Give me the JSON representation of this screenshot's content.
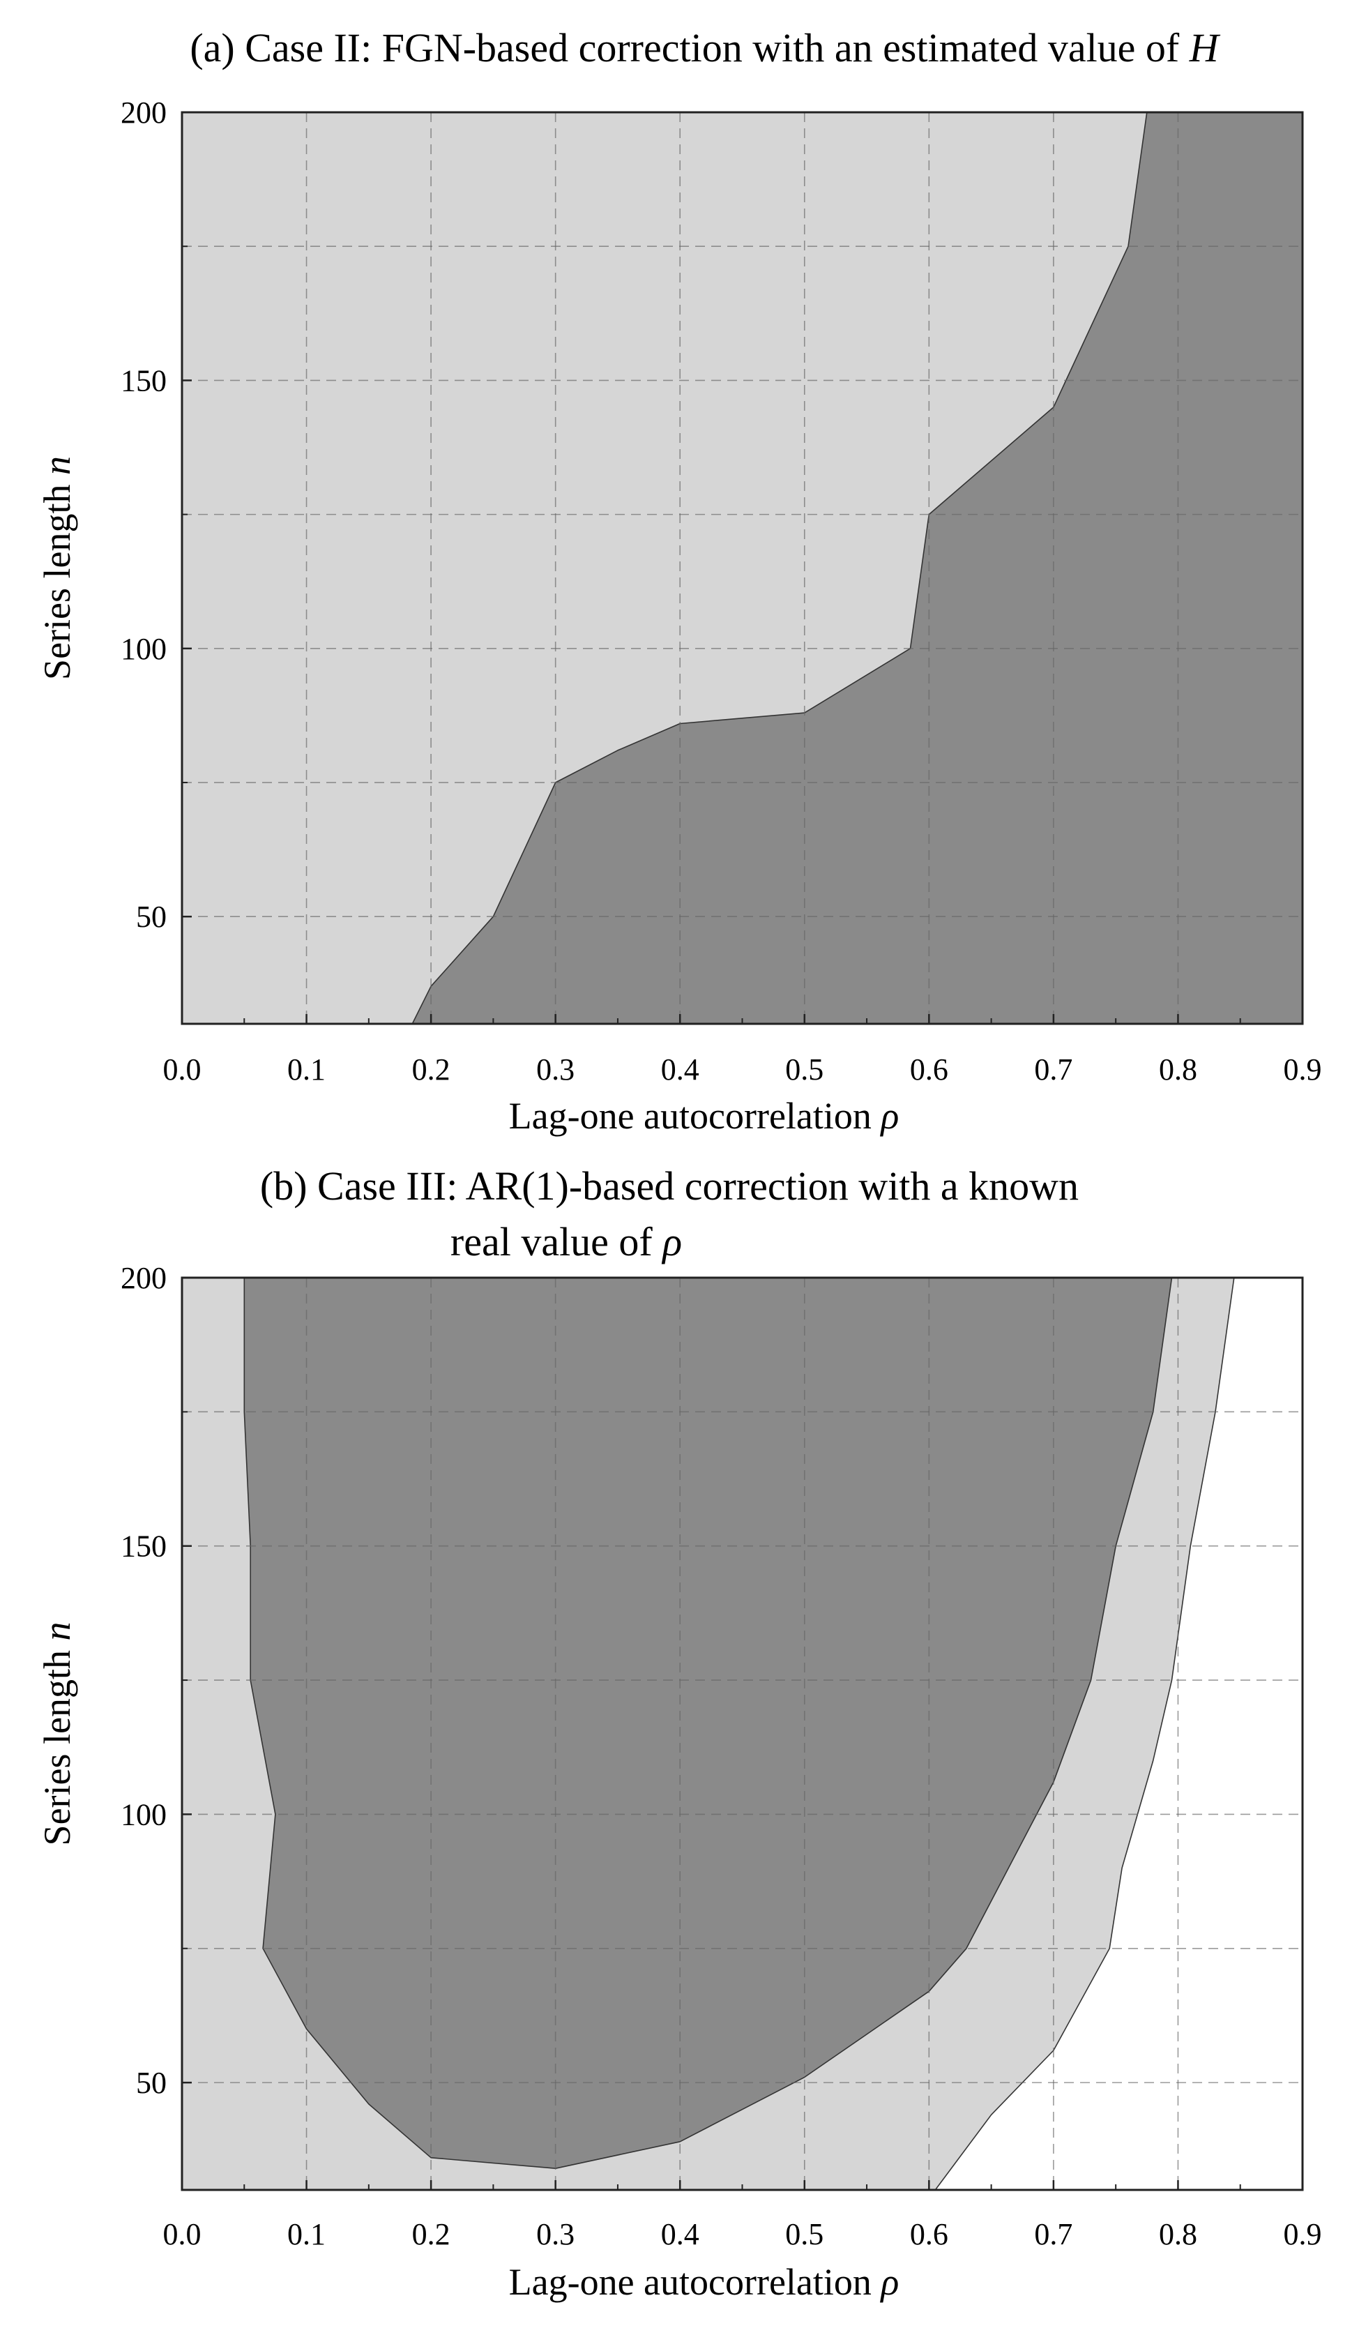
{
  "chart_data": [
    {
      "type": "area",
      "title": "(a) Case II: FGN-based correction with an estimated value of H",
      "title_parts": [
        {
          "text": "(a) Case II: FGN-based correction with an estimated value of ",
          "italic": false
        },
        {
          "text": "H",
          "italic": true
        }
      ],
      "xlabel": "Lag-one autocorrelation ρ",
      "xlabel_parts": [
        {
          "text": "Lag-one autocorrelation ",
          "italic": false
        },
        {
          "text": "ρ",
          "italic": true
        }
      ],
      "ylabel": "Series length n",
      "ylabel_parts": [
        {
          "text": "Series length ",
          "italic": false
        },
        {
          "text": "n",
          "italic": true
        }
      ],
      "xlim": [
        0,
        0.9
      ],
      "ylim": [
        30,
        200
      ],
      "xticks": [
        "0.0",
        "0.1",
        "0.2",
        "0.3",
        "0.4",
        "0.5",
        "0.6",
        "0.7",
        "0.8",
        "0.9"
      ],
      "yticks": [
        "50",
        "100",
        "150",
        "200"
      ],
      "grid": true,
      "colors": {
        "background": "#d6d6d6",
        "region": "#8a8a8a"
      },
      "regions": [
        {
          "fill": "#8a8a8a",
          "boundary": [
            [
              0.185,
              30
            ],
            [
              0.2,
              37
            ],
            [
              0.25,
              50
            ],
            [
              0.3,
              75
            ],
            [
              0.35,
              81
            ],
            [
              0.4,
              86
            ],
            [
              0.5,
              88
            ],
            [
              0.585,
              100
            ],
            [
              0.6,
              125
            ],
            [
              0.7,
              145
            ],
            [
              0.76,
              175
            ],
            [
              0.775,
              200
            ],
            [
              0.9,
              200
            ],
            [
              0.9,
              30
            ]
          ]
        }
      ]
    },
    {
      "type": "area",
      "title": "(b) Case III: AR(1)-based correction with a known real value of ρ",
      "title_lines": [
        [
          {
            "text": "(b) Case III: AR(1)-based correction with a known",
            "italic": false
          }
        ],
        [
          {
            "text": "real value of ",
            "italic": false
          },
          {
            "text": "ρ",
            "italic": true
          }
        ]
      ],
      "xlabel": "Lag-one autocorrelation ρ",
      "xlabel_parts": [
        {
          "text": "Lag-one autocorrelation ",
          "italic": false
        },
        {
          "text": "ρ",
          "italic": true
        }
      ],
      "ylabel": "Series length n",
      "ylabel_parts": [
        {
          "text": "Series length ",
          "italic": false
        },
        {
          "text": "n",
          "italic": true
        }
      ],
      "xlim": [
        0,
        0.9
      ],
      "ylim": [
        30,
        200
      ],
      "xticks": [
        "0.0",
        "0.1",
        "0.2",
        "0.3",
        "0.4",
        "0.5",
        "0.6",
        "0.7",
        "0.8",
        "0.9"
      ],
      "yticks": [
        "50",
        "100",
        "150",
        "200"
      ],
      "grid": true,
      "colors": {
        "background": "#ffffff",
        "light_region": "#d6d6d6",
        "dark_region": "#8a8a8a"
      },
      "regions": [
        {
          "fill": "#d6d6d6",
          "boundary": [
            [
              0,
              30
            ],
            [
              0,
              200
            ],
            [
              0.845,
              200
            ],
            [
              0.83,
              175
            ],
            [
              0.81,
              150
            ],
            [
              0.795,
              125
            ],
            [
              0.78,
              110
            ],
            [
              0.755,
              90
            ],
            [
              0.745,
              75
            ],
            [
              0.7,
              56
            ],
            [
              0.65,
              44
            ],
            [
              0.605,
              30
            ]
          ]
        },
        {
          "fill": "#8a8a8a",
          "boundary": [
            [
              0.05,
              200
            ],
            [
              0.05,
              175
            ],
            [
              0.055,
              150
            ],
            [
              0.055,
              125
            ],
            [
              0.075,
              100
            ],
            [
              0.065,
              75
            ],
            [
              0.1,
              60
            ],
            [
              0.15,
              46
            ],
            [
              0.2,
              36
            ],
            [
              0.3,
              34
            ],
            [
              0.4,
              39
            ],
            [
              0.5,
              51
            ],
            [
              0.6,
              67
            ],
            [
              0.63,
              75
            ],
            [
              0.7,
              106
            ],
            [
              0.73,
              125
            ],
            [
              0.75,
              150
            ],
            [
              0.78,
              175
            ],
            [
              0.795,
              200
            ]
          ]
        }
      ]
    }
  ]
}
